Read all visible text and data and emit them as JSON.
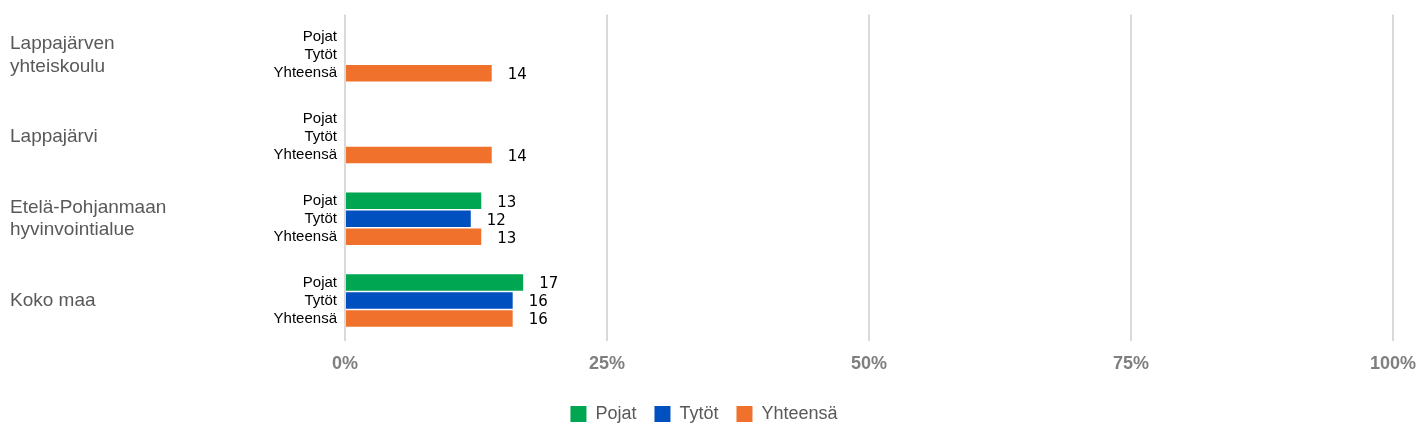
{
  "chart_data": {
    "type": "bar",
    "orientation": "horizontal",
    "categories": [
      "Lappajärven yhteiskoulu",
      "Lappajärvi",
      "Etelä-Pohjanmaan hyvinvointialue",
      "Koko maa"
    ],
    "series": [
      {
        "name": "Pojat",
        "color": "#00a651",
        "values": [
          null,
          null,
          13,
          17
        ]
      },
      {
        "name": "Tytöt",
        "color": "#0050c0",
        "values": [
          null,
          null,
          12,
          16
        ]
      },
      {
        "name": "Yhteensä",
        "color": "#f0712c",
        "values": [
          14,
          14,
          13,
          16
        ]
      }
    ],
    "xlim": [
      0,
      100
    ],
    "xticks": [
      {
        "value": 0,
        "label": "0%"
      },
      {
        "value": 25,
        "label": "25%"
      },
      {
        "value": 50,
        "label": "50%"
      },
      {
        "value": 75,
        "label": "75%"
      },
      {
        "value": 100,
        "label": "100%"
      }
    ],
    "grid": "x",
    "legend": "bottom",
    "data_labels": true
  }
}
